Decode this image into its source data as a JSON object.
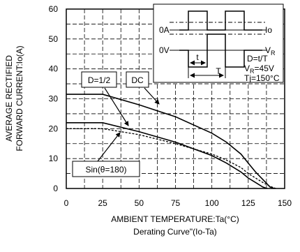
{
  "chart_data": {
    "type": "line",
    "xlabel": "AMBIENT TEMPERATURE:Ta(°C)",
    "caption": "Derating Curve\"(Io-Ta)",
    "ylabel_line1": "AVERAGE RECTIFIED",
    "ylabel_line2": "FORWARD CURRENT:Io(A)",
    "xlim": [
      0,
      150
    ],
    "ylim": [
      0,
      60
    ],
    "x_ticks": [
      "0",
      "25",
      "50",
      "75",
      "100",
      "125",
      "150"
    ],
    "y_ticks": [
      "0",
      "10",
      "20",
      "30",
      "40",
      "50",
      "60"
    ],
    "grid": "dashed",
    "series": [
      {
        "name": "DC",
        "style": "solid",
        "x": [
          0,
          25,
          50,
          75,
          100,
          110,
          120,
          125,
          130,
          135,
          140,
          143
        ],
        "y": [
          31.5,
          31.5,
          28,
          24,
          18.5,
          15.5,
          11.5,
          8.5,
          5.5,
          3,
          0.5,
          0
        ]
      },
      {
        "name": "D=1/2",
        "style": "solid",
        "x": [
          0,
          25,
          50,
          75,
          100,
          110,
          120,
          125,
          130,
          135,
          138
        ],
        "y": [
          22,
          22,
          19,
          15.5,
          11,
          8.5,
          5.5,
          3.5,
          2,
          0.5,
          0
        ]
      },
      {
        "name": "Sin(θ=180)",
        "style": "dashed",
        "x": [
          0,
          25,
          50,
          75,
          100,
          110,
          120,
          125,
          130,
          135,
          140,
          144
        ],
        "y": [
          20,
          20,
          18,
          15,
          11.5,
          9.5,
          7,
          5,
          3.5,
          2,
          0.7,
          0
        ]
      }
    ],
    "annotations": {
      "dc": "DC",
      "d12": "D=1/2",
      "sin": "Sin(θ=180)"
    },
    "inset": {
      "io_zero": "0A",
      "v_zero": "0V",
      "io_label": "Io",
      "vr_main": "V",
      "vr_sub": "R",
      "t": "t",
      "T": "T",
      "d_formula": "D=t/T",
      "vr_val_main": "V",
      "vr_val_sub": "R",
      "vr_val_rest": "=45V",
      "tj": "Tj=150°C"
    }
  }
}
